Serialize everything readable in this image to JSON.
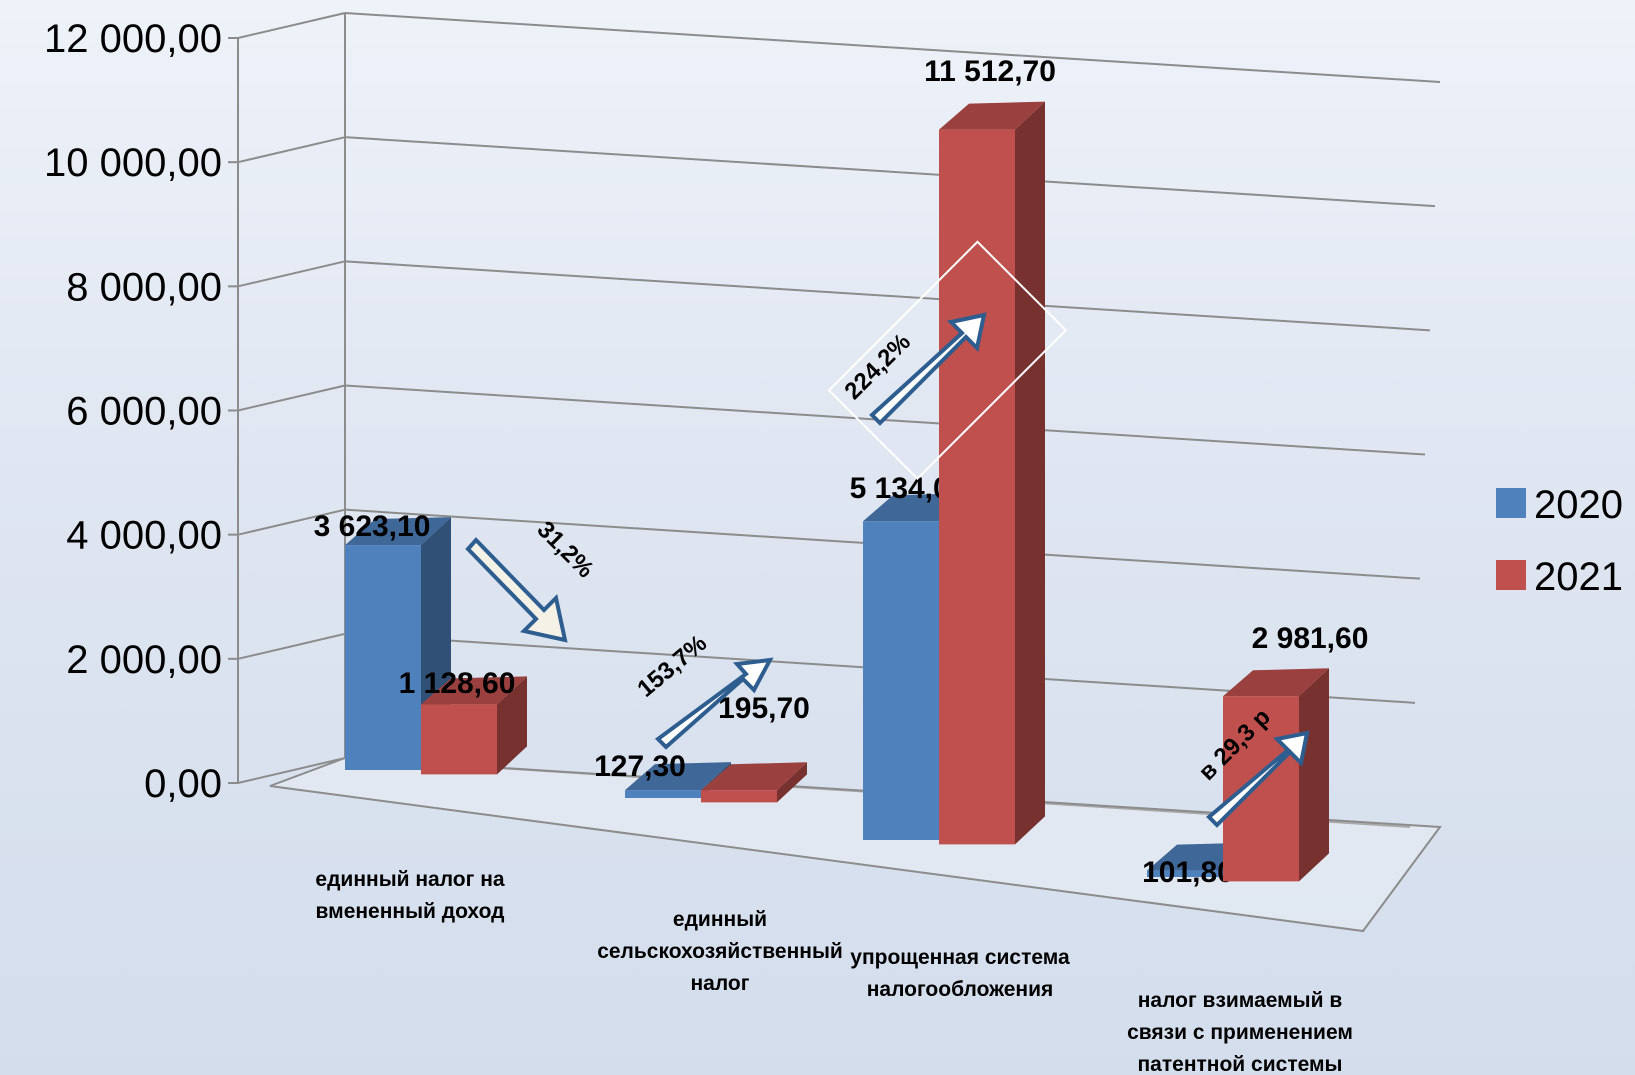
{
  "chart_data": {
    "type": "bar",
    "categories": [
      [
        "единный налог на",
        "вмененный доход"
      ],
      [
        "единный",
        "сельскохозяйственный",
        "налог"
      ],
      [
        "упрощенная система",
        "налогообложения"
      ],
      [
        "налог взимаемый в",
        "связи с применением",
        "патентной системы"
      ]
    ],
    "series": [
      {
        "name": "2020",
        "values": [
          3623.1,
          127.3,
          5134.0,
          101.8
        ],
        "labels": [
          "3 623,10",
          "127,30",
          "5 134,00",
          "101,80"
        ]
      },
      {
        "name": "2021",
        "values": [
          1128.6,
          195.7,
          11512.7,
          2981.6
        ],
        "labels": [
          "1 128,60",
          "195,70",
          "11 512,70",
          "2 981,60"
        ]
      }
    ],
    "ylim": [
      0,
      12000
    ],
    "yticks": [
      "0,00",
      "2 000,00",
      "4 000,00",
      "6 000,00",
      "8 000,00",
      "10 000,00",
      "12 000,00"
    ],
    "legend_position": "right",
    "grid": true,
    "annotations": [
      "31,2%",
      "153,7%",
      "224,2%",
      "в 29,3 р"
    ]
  },
  "colors": {
    "series_2020": "#4f81bd",
    "series_2021": "#c0504d"
  }
}
